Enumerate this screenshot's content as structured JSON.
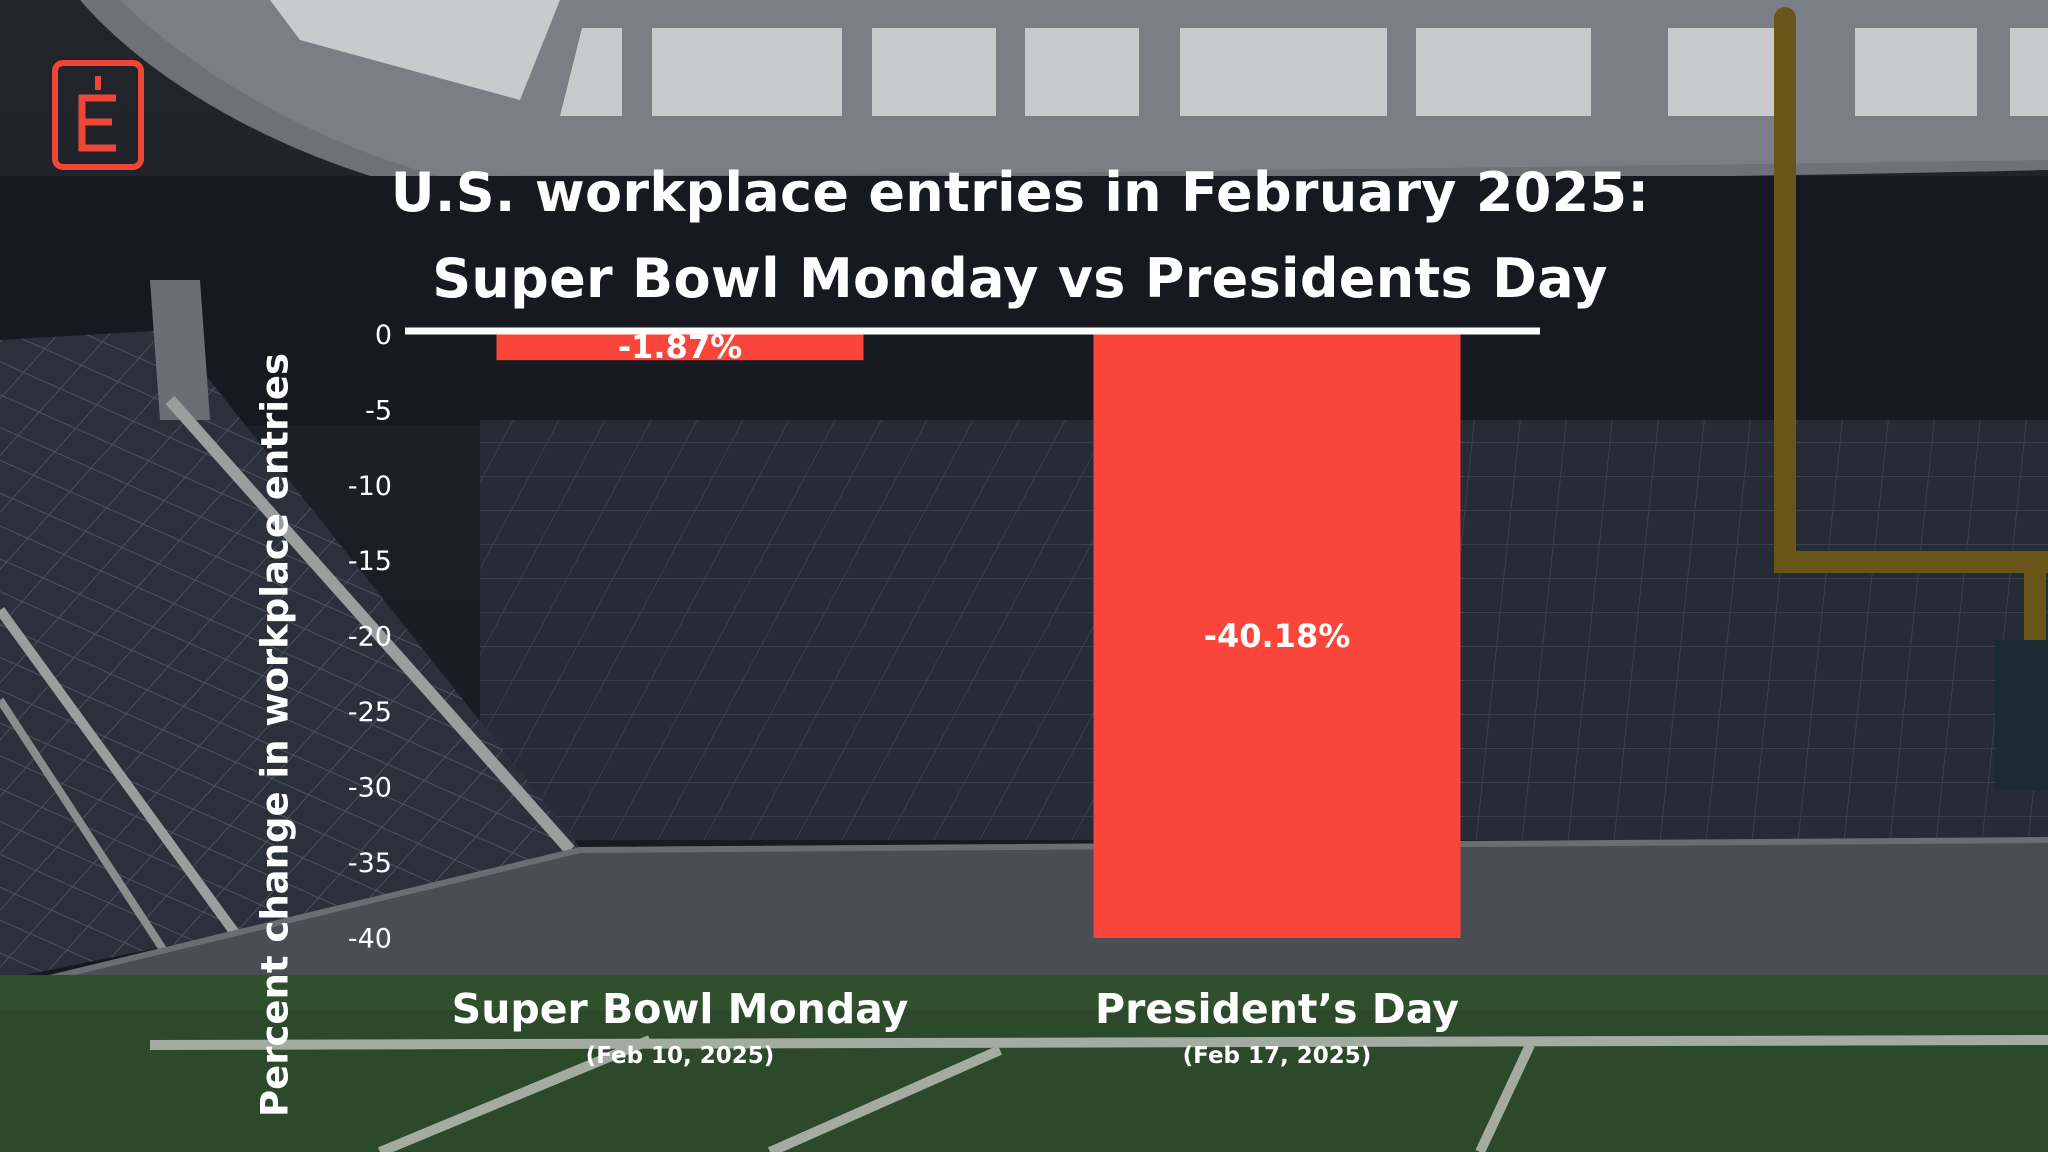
{
  "brand": {
    "logo_letter": "E",
    "logo_color": "#f04637"
  },
  "chart_data": {
    "type": "bar",
    "title_lines": [
      "U.S. workplace entries in February 2025:",
      "Super Bowl Monday vs Presidents Day"
    ],
    "xlabel": "",
    "ylabel": "Percent change in workplace entries",
    "categories": [
      {
        "label": "Super Bowl Monday",
        "sublabel": "(Feb 10, 2025)"
      },
      {
        "label": "President’s Day",
        "sublabel": "(Feb 17, 2025)"
      }
    ],
    "values": [
      -1.87,
      -40.18
    ],
    "value_labels": [
      "-1.87%",
      "-40.18%"
    ],
    "yticks": [
      0,
      -5,
      -10,
      -15,
      -20,
      -25,
      -30,
      -35,
      -40
    ],
    "ylim": [
      -42.5,
      0
    ],
    "grid": false,
    "legend": "none",
    "colors": {
      "bar": "#f9453a",
      "text": "#ffffff",
      "baseline": "#ffffff"
    }
  }
}
